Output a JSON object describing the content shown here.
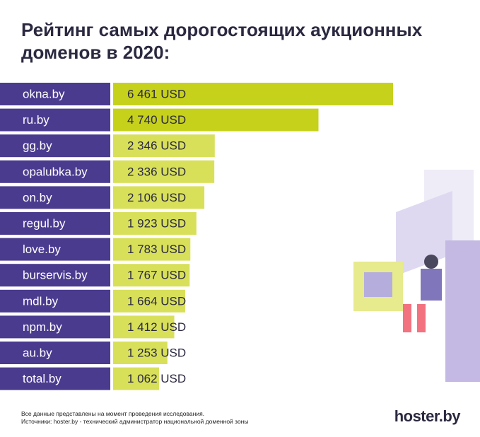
{
  "chart_data": {
    "type": "barh",
    "title": "Рейтинг самых дорогостоящих аукционных доменов в 2020:",
    "categories": [
      "okna.by",
      "ru.by",
      "gg.by",
      "opalubka.by",
      "on.by",
      "regul.by",
      "love.by",
      "burservis.by",
      "mdl.by",
      "npm.by",
      "au.by",
      "total.by"
    ],
    "values": [
      6461,
      4740,
      2346,
      2336,
      2106,
      1923,
      1783,
      1767,
      1664,
      1412,
      1253,
      1062
    ],
    "value_labels": [
      "6 461 USD",
      "4 740 USD",
      "2 346 USD",
      "2 336 USD",
      "2 106 USD",
      "1 923 USD",
      "1 783 USD",
      "1 767 USD",
      "1 664 USD",
      "1 412 USD",
      "1 253 USD",
      "1 062 USD"
    ],
    "colors": [
      "#c6d11c",
      "#c6d11c",
      "#d8e05a",
      "#d8e05a",
      "#d8e05a",
      "#d8e05a",
      "#d8e05a",
      "#d8e05a",
      "#d8e05a",
      "#d8e05a",
      "#d8e05a",
      "#d8e05a"
    ],
    "label_color": "#4b3b8f",
    "footnotes": [
      "Все данные представлены на момент проведения исследования.",
      "Источники: hoster.by - технический администратор национальной доменной зоны"
    ],
    "logo": "hoster.by"
  }
}
